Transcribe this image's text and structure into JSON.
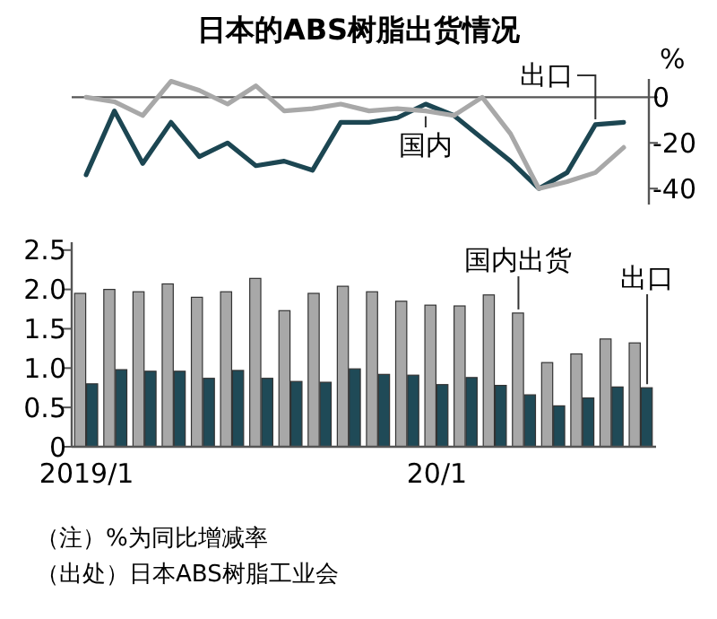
{
  "chart_data": [
    {
      "type": "line",
      "title": "日本的ABS树脂出货情况",
      "ylabel": "%",
      "categories": [
        null,
        null,
        null,
        null,
        null,
        null,
        null,
        null,
        null,
        null,
        null,
        null,
        null,
        null,
        null,
        null,
        null,
        null,
        null,
        null
      ],
      "series": [
        {
          "name": "出口",
          "color": "#1c4652",
          "values": [
            -34,
            -6,
            -29,
            -11,
            -26,
            -20,
            -30,
            -28,
            -32,
            -11,
            -11,
            -9,
            -3,
            -8,
            -18,
            -28,
            -40,
            -33,
            -12,
            -11
          ]
        },
        {
          "name": "国内",
          "color": "#a8a8a8",
          "values": [
            0,
            -2,
            -8,
            7,
            3,
            -3,
            5,
            -6,
            -5,
            -3,
            -6,
            -5,
            -6,
            -8,
            0,
            -16,
            -40,
            -37,
            -33,
            -22
          ]
        }
      ],
      "ylim": [
        -47,
        8
      ],
      "yticks": [
        0,
        -20,
        -40
      ],
      "ref_lines": [
        {
          "axis": "y",
          "value": 0,
          "color": "#555555"
        }
      ],
      "tick_labels": "y",
      "grid": false,
      "legend": false
    },
    {
      "type": "bar",
      "categories": [
        "2019/1",
        null,
        null,
        null,
        null,
        null,
        null,
        null,
        null,
        null,
        null,
        null,
        "20/1",
        null,
        null,
        null,
        null,
        null,
        null,
        null
      ],
      "series": [
        {
          "name": "国内出货",
          "color": "#a8a8a8",
          "values": [
            1.95,
            2.0,
            1.97,
            2.07,
            1.9,
            1.97,
            2.14,
            1.73,
            1.95,
            2.04,
            1.97,
            1.85,
            1.8,
            1.79,
            1.93,
            1.7,
            1.07,
            1.18,
            1.37,
            1.32
          ]
        },
        {
          "name": "出口",
          "color": "#1f4a57",
          "values": [
            0.8,
            0.98,
            0.96,
            0.96,
            0.87,
            0.97,
            0.87,
            0.83,
            0.82,
            0.99,
            0.92,
            0.91,
            0.79,
            0.88,
            0.78,
            0.66,
            0.52,
            0.62,
            0.76,
            0.75
          ]
        }
      ],
      "ylim": [
        0,
        2.6
      ],
      "yticks": [
        0,
        0.5,
        {
          "value": 1,
          "label": "1.0"
        },
        1.5,
        {
          "value": 2,
          "label": "2.0"
        },
        2.5
      ],
      "grid": false,
      "legend": false,
      "annotations": [
        "（注）%为同比增减率",
        "（出处）日本ABS树脂工业会"
      ]
    }
  ]
}
